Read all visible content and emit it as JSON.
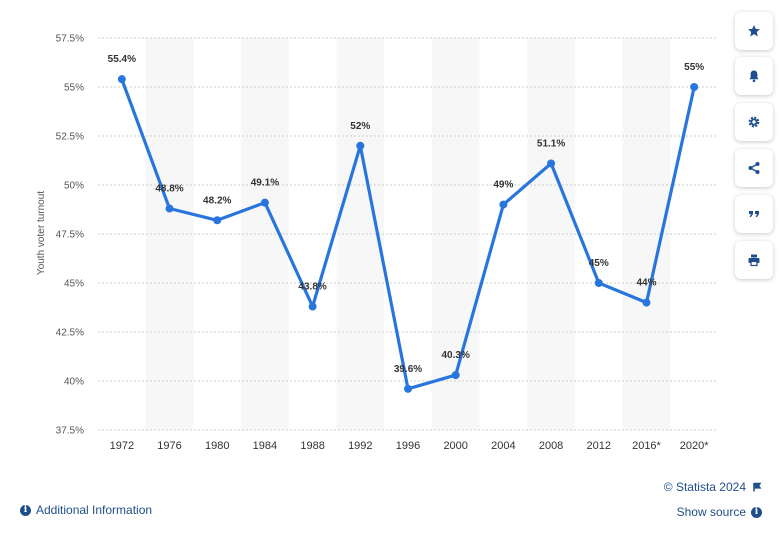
{
  "chart_data": {
    "type": "line",
    "title": "",
    "xlabel": "",
    "ylabel": "Youth voter turnout",
    "categories": [
      "1972",
      "1976",
      "1980",
      "1984",
      "1988",
      "1992",
      "1996",
      "2000",
      "2004",
      "2008",
      "2012",
      "2016*",
      "2020*"
    ],
    "series": [
      {
        "name": "Youth voter turnout",
        "values": [
          55.4,
          48.8,
          48.2,
          49.1,
          43.8,
          52,
          39.6,
          40.3,
          49,
          51.1,
          45,
          44,
          55
        ]
      }
    ],
    "data_labels": [
      "55.4%",
      "48.8%",
      "48.2%",
      "49.1%",
      "43.8%",
      "52%",
      "39.6%",
      "40.3%",
      "49%",
      "51.1%",
      "45%",
      "44%",
      "55%"
    ],
    "y_ticks": [
      37.5,
      40,
      42.5,
      45,
      47.5,
      50,
      52.5,
      55,
      57.5
    ],
    "y_tick_labels": [
      "37.5%",
      "40%",
      "42.5%",
      "45%",
      "47.5%",
      "50%",
      "52.5%",
      "55%",
      "57.5%"
    ],
    "ylim": [
      37.5,
      57.5
    ],
    "grid": true,
    "line_color": "#2876dd"
  },
  "toolbar": {
    "buttons": [
      {
        "name": "star-icon",
        "label": "Favorite"
      },
      {
        "name": "bell-icon",
        "label": "Notification"
      },
      {
        "name": "gear-icon",
        "label": "Settings"
      },
      {
        "name": "share-icon",
        "label": "Share"
      },
      {
        "name": "quote-icon",
        "label": "Cite"
      },
      {
        "name": "print-icon",
        "label": "Print"
      }
    ]
  },
  "footer": {
    "additional_info": "Additional Information",
    "copyright": "© Statista 2024",
    "show_source": "Show source"
  },
  "colors": {
    "accent": "#1f4e8c",
    "band": "#f7f7f7",
    "grid": "#cccccc"
  }
}
